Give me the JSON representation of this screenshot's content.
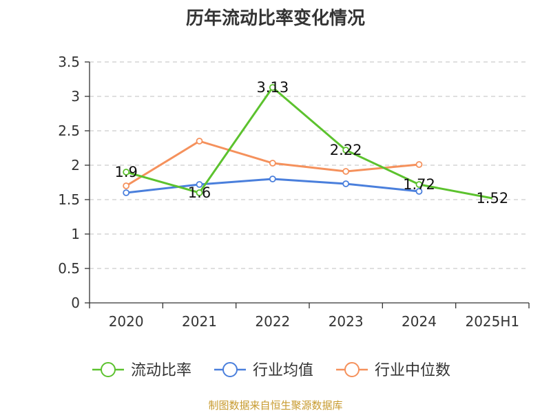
{
  "chart_data": {
    "type": "line",
    "title": "历年流动比率变化情况",
    "categories": [
      "2020",
      "2021",
      "2022",
      "2023",
      "2024",
      "2025H1"
    ],
    "ylim": [
      0,
      3.5
    ],
    "yticks": [
      "0",
      "0.5",
      "1",
      "1.5",
      "2",
      "2.5",
      "3",
      "3.5"
    ],
    "grid": true,
    "legend_position": "bottom",
    "series": [
      {
        "name": "流动比率",
        "color": "#5cc22e",
        "values": [
          1.9,
          1.6,
          3.13,
          2.22,
          1.72,
          1.52
        ],
        "labels": [
          "1.9",
          "1.6",
          "3.13",
          "2.22",
          "1.72",
          "1.52"
        ]
      },
      {
        "name": "行业均值",
        "color": "#4a7fdc",
        "values": [
          1.6,
          1.72,
          1.8,
          1.73,
          1.62,
          null
        ]
      },
      {
        "name": "行业中位数",
        "color": "#f5915c",
        "values": [
          1.7,
          2.35,
          2.03,
          1.91,
          2.01,
          null
        ]
      }
    ]
  },
  "source": "制图数据来自恒生聚源数据库"
}
